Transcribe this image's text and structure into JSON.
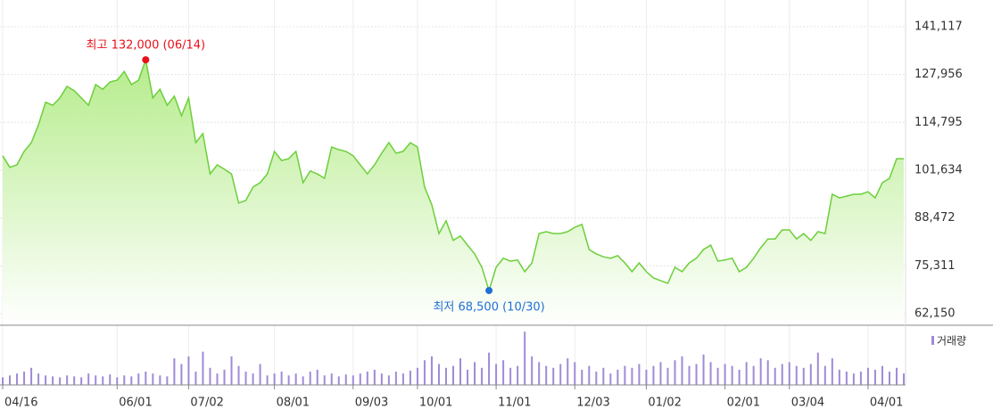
{
  "chart_data": {
    "type": "stock",
    "values": [
      105600,
      102400,
      103100,
      106800,
      109200,
      114100,
      120300,
      119500,
      121500,
      124700,
      123500,
      121500,
      119500,
      125200,
      123900,
      125900,
      126400,
      128800,
      125200,
      126400,
      132000,
      121500,
      123900,
      119500,
      122000,
      116600,
      121500,
      109200,
      111700,
      100600,
      103100,
      101900,
      100600,
      92600,
      93300,
      97000,
      98200,
      100600,
      106800,
      104300,
      104800,
      106800,
      98200,
      101400,
      100600,
      99400,
      108000,
      107300,
      106800,
      105600,
      103100,
      100600,
      103100,
      106300,
      109200,
      106300,
      106800,
      109200,
      108000,
      97000,
      92100,
      84200,
      87700,
      82300,
      83500,
      81000,
      78600,
      74900,
      68500,
      74900,
      77400,
      76600,
      76900,
      73700,
      76100,
      84200,
      84700,
      84200,
      84200,
      84700,
      85900,
      86700,
      79800,
      78600,
      77800,
      77400,
      78100,
      76100,
      73700,
      76100,
      73700,
      72000,
      71200,
      70500,
      74900,
      73700,
      76100,
      77400,
      79800,
      81000,
      76600,
      76900,
      77400,
      73700,
      74900,
      77400,
      80300,
      82700,
      82700,
      85200,
      85200,
      82700,
      84200,
      82300,
      84700,
      84200,
      95000,
      94000,
      94500,
      95000,
      95000,
      95700,
      94000,
      98200,
      99400,
      104800,
      104800
    ],
    "color": "#6ccf3a",
    "ylim": [
      58960,
      148460
    ],
    "yticks": [
      {
        "value": 62150,
        "label": "62,150"
      },
      {
        "value": 75311,
        "label": "75,311"
      },
      {
        "value": 88472,
        "label": "88,472"
      },
      {
        "value": 101634,
        "label": "101,634"
      },
      {
        "value": 114795,
        "label": "114,795"
      },
      {
        "value": 127956,
        "label": "127,956"
      },
      {
        "value": 141117,
        "label": "141,117"
      }
    ],
    "xlim": [
      0,
      126
    ],
    "xticks": [
      {
        "value": 0,
        "label": "04/16"
      },
      {
        "value": 16,
        "label": "06/01"
      },
      {
        "value": 26,
        "label": "07/02"
      },
      {
        "value": 38,
        "label": "08/01"
      },
      {
        "value": 49,
        "label": "09/03"
      },
      {
        "value": 58,
        "label": "10/01"
      },
      {
        "value": 69,
        "label": "11/01"
      },
      {
        "value": 80,
        "label": "12/03"
      },
      {
        "value": 90,
        "label": "01/02"
      },
      {
        "value": 101,
        "label": "02/01"
      },
      {
        "value": 110,
        "label": "03/04"
      },
      {
        "value": 121,
        "label": "04/01"
      }
    ],
    "grid": true,
    "annotations": {
      "high": "최고 132,000 (06/14)",
      "high_color": "#e8101a",
      "low": "최저 68,500 (10/30)",
      "low_color": "#1f6fd6"
    },
    "volume": {
      "name": "거래량",
      "color": "#a08ad8",
      "y2lim": [
        0,
        60
      ],
      "values": [
        8,
        10,
        12,
        14,
        18,
        12,
        10,
        9,
        8,
        10,
        9,
        8,
        12,
        10,
        9,
        11,
        8,
        10,
        9,
        12,
        14,
        12,
        10,
        9,
        28,
        22,
        30,
        14,
        35,
        18,
        12,
        16,
        30,
        20,
        14,
        12,
        22,
        10,
        12,
        14,
        10,
        12,
        9,
        14,
        16,
        10,
        12,
        9,
        11,
        10,
        12,
        14,
        16,
        12,
        10,
        14,
        12,
        15,
        18,
        26,
        30,
        22,
        18,
        20,
        28,
        16,
        24,
        18,
        34,
        22,
        26,
        18,
        20,
        56,
        30,
        24,
        20,
        18,
        22,
        28,
        24,
        16,
        20,
        14,
        18,
        12,
        16,
        20,
        18,
        22,
        16,
        20,
        24,
        18,
        26,
        30,
        20,
        22,
        32,
        24,
        18,
        22,
        20,
        16,
        24,
        20,
        28,
        26,
        18,
        22,
        24,
        20,
        18,
        22,
        34,
        20,
        28,
        16,
        14,
        12,
        14,
        18,
        16,
        20,
        14,
        18,
        12
      ]
    }
  }
}
